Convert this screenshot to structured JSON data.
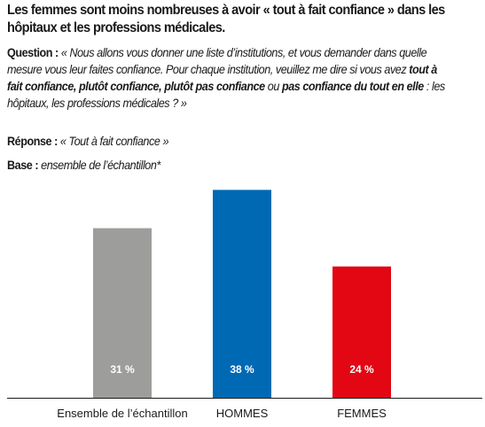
{
  "title": "Les femmes sont moins nombreuses à avoir « tout à fait confiance » dans les hôpitaux et les professions médicales.",
  "question": {
    "label": "Question :",
    "text_1": " « Nous allons vous donner une liste d’institutions, et vous demander dans quelle mesure vous leur faites confiance. Pour chaque institution, veuillez me dire si vous avez ",
    "opt_1": "tout à fait confiance, plutôt confiance, plutôt pas confiance",
    "text_2": " ou ",
    "opt_2": "pas confiance du tout en elle",
    "text_3": " : les hôpitaux, les professions médicales ? »"
  },
  "reponse": {
    "label": "Réponse :",
    "value": " « Tout à fait confiance »"
  },
  "base": {
    "label": "Base :",
    "value": " ensemble de l’échantillon*"
  },
  "colors": {
    "gray": "#9d9d9c",
    "blue": "#0069b4",
    "red": "#e30613",
    "axis": "#1a1a1a"
  },
  "chart_data": {
    "type": "bar",
    "categories": [
      "Ensemble de l’échantillon",
      "HOMMES",
      "FEMMES"
    ],
    "values": [
      31,
      38,
      24
    ],
    "value_labels": [
      "31 %",
      "38 %",
      "24 %"
    ],
    "bar_colors": [
      "#9d9d9c",
      "#0069b4",
      "#e30613"
    ],
    "ylim": [
      0,
      40
    ]
  }
}
